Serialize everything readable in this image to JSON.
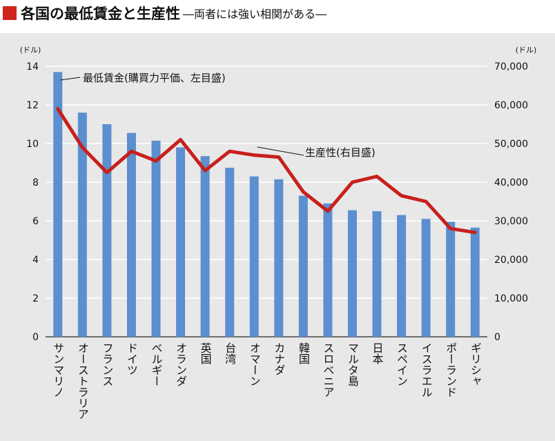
{
  "header": {
    "title": "各国の最低賃金と生産性",
    "subtitle": "―両者には強い相関がある―"
  },
  "chart_data": {
    "type": "bar",
    "categories": [
      "サンマリノ",
      "オーストラリア",
      "フランス",
      "ドイツ",
      "ベルギー",
      "オランダ",
      "英国",
      "台湾",
      "オマーン",
      "カナダ",
      "韓国",
      "スロベニア",
      "マルタ島",
      "日本",
      "スペイン",
      "イスラエル",
      "ポーランド",
      "ギリシャ"
    ],
    "series": [
      {
        "name": "最低賃金(購買力平価、左目盛)",
        "type": "bar",
        "axis": "left",
        "color": "#5b8fcf",
        "values": [
          13.7,
          11.6,
          11.0,
          10.55,
          10.15,
          9.8,
          9.35,
          8.75,
          8.3,
          8.15,
          7.3,
          6.9,
          6.55,
          6.5,
          6.3,
          6.1,
          5.95,
          5.65
        ]
      },
      {
        "name": "生産性(右目盛)",
        "type": "line",
        "axis": "right",
        "color": "#c8201c",
        "values": [
          59000,
          49000,
          42500,
          48000,
          45500,
          51000,
          43000,
          48000,
          47000,
          46500,
          37500,
          32500,
          40000,
          41500,
          36500,
          35000,
          28000,
          27000
        ]
      }
    ],
    "y_left": {
      "unit": "(ドル)",
      "range": [
        0,
        14
      ],
      "ticks": [
        "0",
        "2",
        "4",
        "6",
        "8",
        "10",
        "12",
        "14"
      ]
    },
    "y_right": {
      "unit": "(ドル)",
      "range": [
        0,
        70000
      ],
      "ticks": [
        "0",
        "10,000",
        "20,000",
        "30,000",
        "40,000",
        "50,000",
        "60,000",
        "70,000"
      ]
    },
    "grid": true
  }
}
